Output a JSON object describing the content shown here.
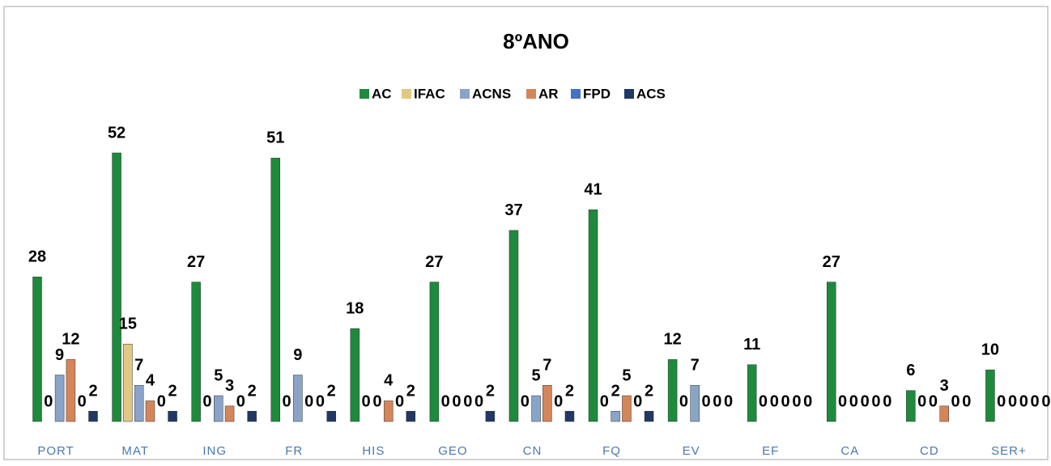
{
  "chart_data": {
    "type": "bar",
    "title": "8ºANO",
    "categories": [
      "PORT",
      "MAT",
      "ING",
      "FR",
      "HIS",
      "GEO",
      "CN",
      "FQ",
      "EV",
      "EF",
      "CA",
      "CD",
      "SER+"
    ],
    "series": [
      {
        "name": "AC",
        "color": "#1e8a3c",
        "values": [
          28,
          52,
          27,
          51,
          18,
          27,
          37,
          41,
          12,
          11,
          27,
          6,
          10
        ]
      },
      {
        "name": "IFAC",
        "color": "#e3c884",
        "values": [
          0,
          15,
          0,
          0,
          0,
          0,
          0,
          0,
          0,
          0,
          0,
          0,
          0
        ]
      },
      {
        "name": "ACNS",
        "color": "#8aa4c8",
        "values": [
          9,
          7,
          5,
          9,
          0,
          0,
          5,
          2,
          7,
          0,
          0,
          0,
          0
        ]
      },
      {
        "name": "AR",
        "color": "#d5855a",
        "values": [
          12,
          4,
          3,
          0,
          4,
          0,
          7,
          5,
          0,
          0,
          0,
          3,
          0
        ]
      },
      {
        "name": "FPD",
        "color": "#4472c4",
        "values": [
          0,
          0,
          0,
          0,
          0,
          0,
          0,
          0,
          0,
          0,
          0,
          0,
          0
        ]
      },
      {
        "name": "ACS",
        "color": "#1f3864",
        "values": [
          2,
          2,
          2,
          2,
          2,
          2,
          2,
          2,
          0,
          0,
          0,
          0,
          0
        ]
      }
    ]
  }
}
